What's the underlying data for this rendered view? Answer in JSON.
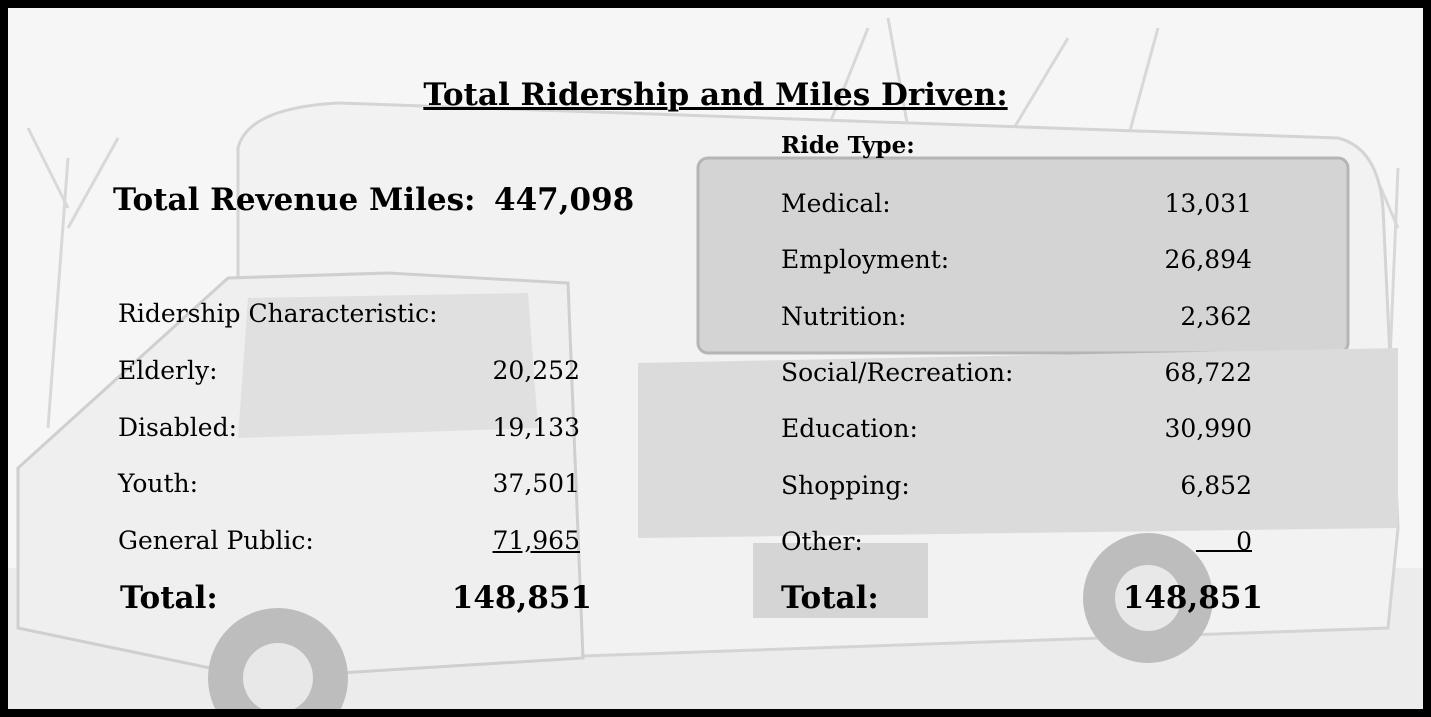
{
  "title": "Total Ridership and Miles Driven:",
  "revenue_miles": {
    "label": "Total Revenue Miles:",
    "value": "447,098"
  },
  "ridership": {
    "heading": "Ridership Characteristic:",
    "rows": [
      [
        "Elderly:",
        "20,252"
      ],
      [
        "Disabled:",
        "19,133"
      ],
      [
        "Youth:",
        "37,501"
      ],
      [
        "General Public:",
        "71,965"
      ]
    ],
    "total": {
      "label": "Total:",
      "value": "148,851"
    }
  },
  "ride_type": {
    "heading": "Ride Type:",
    "rows": [
      [
        "Medical:",
        "13,031"
      ],
      [
        "Employment:",
        "26,894"
      ],
      [
        "Nutrition:",
        "2,362"
      ],
      [
        "Social/Recreation:",
        "68,722"
      ],
      [
        "Education:",
        "30,990"
      ],
      [
        "Shopping:",
        "6,852"
      ],
      [
        "Other:",
        "0"
      ]
    ],
    "total": {
      "label": "Total:",
      "value": "148,851"
    }
  }
}
